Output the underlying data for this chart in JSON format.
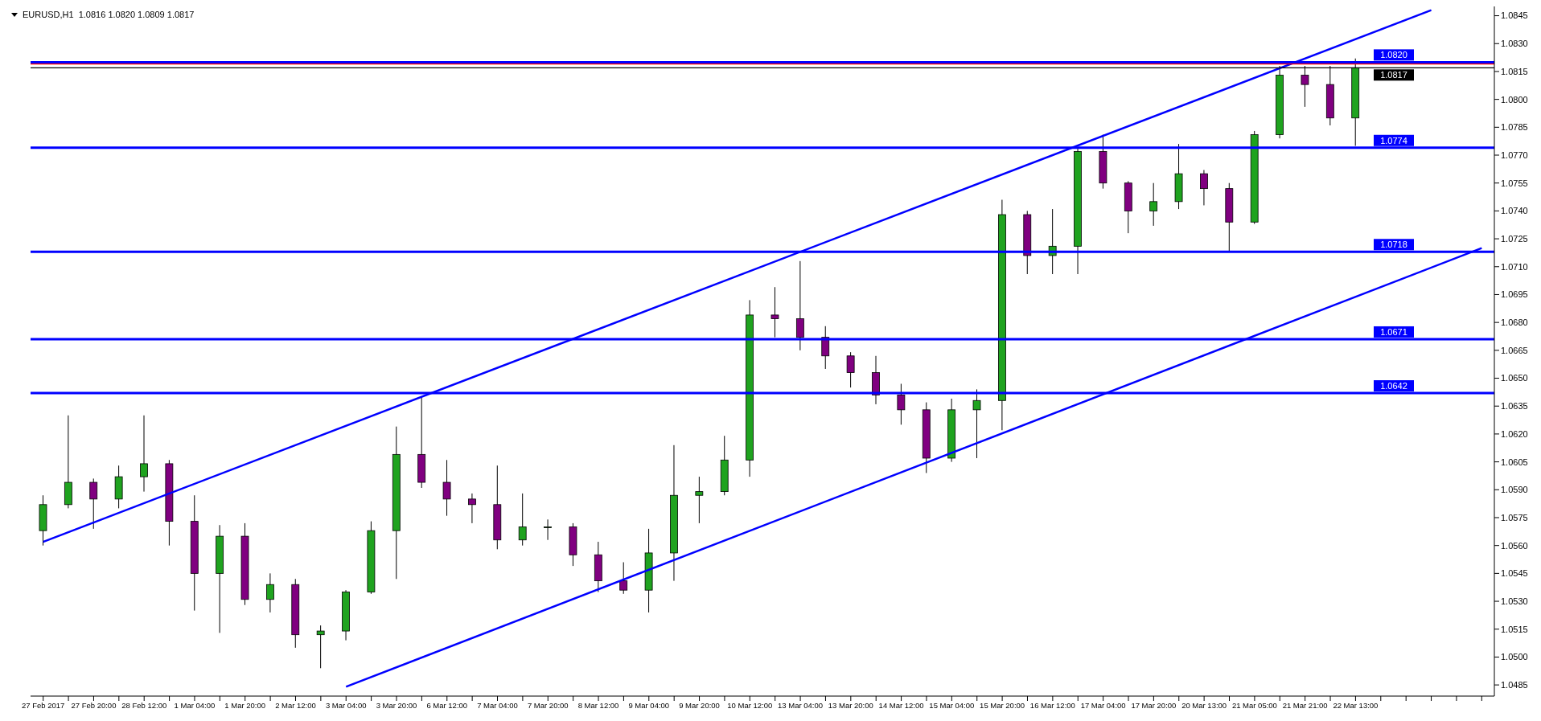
{
  "chart_data": {
    "type": "candlestick",
    "title": "EURUSD,H1  1.0816 1.0820 1.0809 1.0817",
    "categories": [
      "27 Feb 2017",
      null,
      "27 Feb 20:00",
      null,
      "28 Feb 12:00",
      null,
      "1 Mar 04:00",
      null,
      "1 Mar 20:00",
      null,
      "2 Mar 12:00",
      null,
      "3 Mar 04:00",
      null,
      "3 Mar 20:00",
      null,
      "6 Mar 12:00",
      null,
      "7 Mar 04:00",
      null,
      "7 Mar 20:00",
      null,
      "8 Mar 12:00",
      null,
      "9 Mar 04:00",
      null,
      "9 Mar 20:00",
      null,
      "10 Mar 12:00",
      null,
      "13 Mar 04:00",
      null,
      "13 Mar 20:00",
      null,
      "14 Mar 12:00",
      null,
      "15 Mar 04:00",
      null,
      "15 Mar 20:00",
      null,
      "16 Mar 12:00",
      null,
      "17 Mar 04:00",
      null,
      "17 Mar 20:00",
      null,
      "20 Mar 13:00",
      null,
      "21 Mar 05:00",
      null,
      "21 Mar 21:00",
      null,
      "22 Mar 13:00",
      null,
      null,
      null,
      null,
      null
    ],
    "ohlc": [
      [
        1.0568,
        1.0587,
        1.056,
        1.0582
      ],
      [
        1.0582,
        1.063,
        1.058,
        1.0594
      ],
      [
        1.0594,
        1.0596,
        1.0569,
        1.0585
      ],
      [
        1.0585,
        1.0603,
        1.058,
        1.0597
      ],
      [
        1.0597,
        1.063,
        1.0589,
        1.0604
      ],
      [
        1.0604,
        1.0606,
        1.056,
        1.0573
      ],
      [
        1.0573,
        1.0587,
        1.0525,
        1.0545
      ],
      [
        1.0545,
        1.0571,
        1.0513,
        1.0565
      ],
      [
        1.0565,
        1.0572,
        1.0528,
        1.0531
      ],
      [
        1.0531,
        1.0545,
        1.0524,
        1.0539
      ],
      [
        1.0539,
        1.0542,
        1.0505,
        1.0512
      ],
      [
        1.0512,
        1.0517,
        1.0494,
        1.0514
      ],
      [
        1.0514,
        1.0536,
        1.0509,
        1.0535
      ],
      [
        1.0535,
        1.0573,
        1.0534,
        1.0568
      ],
      [
        1.0568,
        1.0624,
        1.0542,
        1.0609
      ],
      [
        1.0609,
        1.064,
        1.0591,
        1.0594
      ],
      [
        1.0594,
        1.0606,
        1.0576,
        1.0585
      ],
      [
        1.0585,
        1.0588,
        1.0572,
        1.0582
      ],
      [
        1.0582,
        1.0603,
        1.0558,
        1.0563
      ],
      [
        1.0563,
        1.0588,
        1.056,
        1.057
      ],
      [
        1.057,
        1.0574,
        1.0563,
        1.057
      ],
      [
        1.057,
        1.0572,
        1.0549,
        1.0555
      ],
      [
        1.0555,
        1.0562,
        1.0535,
        1.0541
      ],
      [
        1.0541,
        1.0551,
        1.0534,
        1.0536
      ],
      [
        1.0536,
        1.0569,
        1.0524,
        1.0556
      ],
      [
        1.0556,
        1.0614,
        1.0541,
        1.0587
      ],
      [
        1.0587,
        1.0597,
        1.0572,
        1.0589
      ],
      [
        1.0589,
        1.0619,
        1.0587,
        1.0606
      ],
      [
        1.0606,
        1.0692,
        1.0597,
        1.0684
      ],
      [
        1.0684,
        1.0699,
        1.0672,
        1.0682
      ],
      [
        1.0682,
        1.0713,
        1.0665,
        1.0672
      ],
      [
        1.0672,
        1.0678,
        1.0655,
        1.0662
      ],
      [
        1.0662,
        1.0664,
        1.0645,
        1.0653
      ],
      [
        1.0653,
        1.0662,
        1.0636,
        1.0641
      ],
      [
        1.0641,
        1.0647,
        1.0625,
        1.0633
      ],
      [
        1.0633,
        1.0637,
        1.0599,
        1.0607
      ],
      [
        1.0607,
        1.0639,
        1.0605,
        1.0633
      ],
      [
        1.0633,
        1.0644,
        1.0607,
        1.0638
      ],
      [
        1.0638,
        1.0746,
        1.0622,
        1.0738
      ],
      [
        1.0738,
        1.074,
        1.0706,
        1.0716
      ],
      [
        1.0716,
        1.0741,
        1.0706,
        1.0721
      ],
      [
        1.0721,
        1.0774,
        1.0706,
        1.0772
      ],
      [
        1.0772,
        1.0781,
        1.0752,
        1.0755
      ],
      [
        1.0755,
        1.0756,
        1.0728,
        1.074
      ],
      [
        1.074,
        1.0755,
        1.0732,
        1.0745
      ],
      [
        1.0745,
        1.0776,
        1.0741,
        1.076
      ],
      [
        1.076,
        1.0762,
        1.0743,
        1.0752
      ],
      [
        1.0752,
        1.0755,
        1.0718,
        1.0734
      ],
      [
        1.0734,
        1.0783,
        1.0733,
        1.0781
      ],
      [
        1.0781,
        1.0818,
        1.0779,
        1.0813
      ],
      [
        1.0813,
        1.0818,
        1.0796,
        1.0808
      ],
      [
        1.0808,
        1.0818,
        1.0786,
        1.079
      ],
      [
        1.079,
        1.0822,
        1.0775,
        1.0817
      ],
      null,
      null,
      null,
      null,
      null
    ],
    "series": [
      {
        "type": "line",
        "color": "#0000ff",
        "values": [
          1.0562,
          null,
          null,
          null,
          null,
          null,
          null,
          null,
          null,
          null,
          null,
          null,
          null,
          null,
          null,
          null,
          null,
          null,
          null,
          null,
          null,
          null,
          null,
          null,
          null,
          null,
          null,
          null,
          null,
          null,
          null,
          null,
          null,
          null,
          null,
          null,
          null,
          null,
          null,
          null,
          null,
          null,
          null,
          null,
          null,
          null,
          null,
          null,
          null,
          null,
          null,
          null,
          null,
          null,
          null,
          1.0848,
          null,
          null
        ]
      },
      {
        "type": "line",
        "color": "#0000ff",
        "values": [
          null,
          null,
          null,
          null,
          null,
          null,
          null,
          null,
          null,
          null,
          null,
          null,
          1.0484,
          null,
          null,
          null,
          null,
          null,
          null,
          null,
          null,
          null,
          null,
          null,
          null,
          null,
          null,
          null,
          null,
          null,
          null,
          null,
          null,
          null,
          null,
          null,
          null,
          null,
          null,
          null,
          null,
          null,
          null,
          null,
          null,
          null,
          null,
          null,
          null,
          null,
          null,
          null,
          null,
          null,
          null,
          null,
          null,
          1.072
        ]
      }
    ],
    "ylim": [
      1.0479,
      1.085
    ],
    "yticks": [
      1.0485,
      {
        "value": 1.05,
        "label": "1.0500"
      },
      1.0515,
      {
        "value": 1.053,
        "label": "1.0530"
      },
      1.0545,
      {
        "value": 1.056,
        "label": "1.0560"
      },
      1.0575,
      {
        "value": 1.059,
        "label": "1.0590"
      },
      1.0605,
      {
        "value": 1.062,
        "label": "1.0620"
      },
      1.0635,
      {
        "value": 1.065,
        "label": "1.0650"
      },
      1.0665,
      {
        "value": 1.068,
        "label": "1.0680"
      },
      1.0695,
      {
        "value": 1.071,
        "label": "1.0710"
      },
      1.0725,
      {
        "value": 1.074,
        "label": "1.0740"
      },
      1.0755,
      {
        "value": 1.077,
        "label": "1.0770"
      },
      1.0785,
      {
        "value": 1.08,
        "label": "1.0800"
      },
      1.0815,
      {
        "value": 1.083,
        "label": "1.0830"
      },
      1.0845
    ],
    "ref_lines": [
      {
        "axis": "y",
        "value": 1.082,
        "label": "1.0820",
        "color": "#0000ff"
      },
      {
        "axis": "y",
        "value": 1.0819,
        "color": "#ff0000"
      },
      {
        "axis": "y",
        "value": 1.0817,
        "label": "1.0817",
        "color": "#000000"
      },
      {
        "axis": "y",
        "value": 1.0774,
        "label": "1.0774",
        "color": "#0000ff"
      },
      {
        "axis": "y",
        "value": 1.0718,
        "label": "1.0718",
        "color": "#0000ff"
      },
      {
        "axis": "y",
        "value": 1.0671,
        "label": "1.0671",
        "color": "#0000ff"
      },
      {
        "axis": "y",
        "value": 1.0642,
        "label": "1.0642",
        "color": "#0000ff"
      }
    ],
    "grid": false,
    "line_style": "solid"
  }
}
